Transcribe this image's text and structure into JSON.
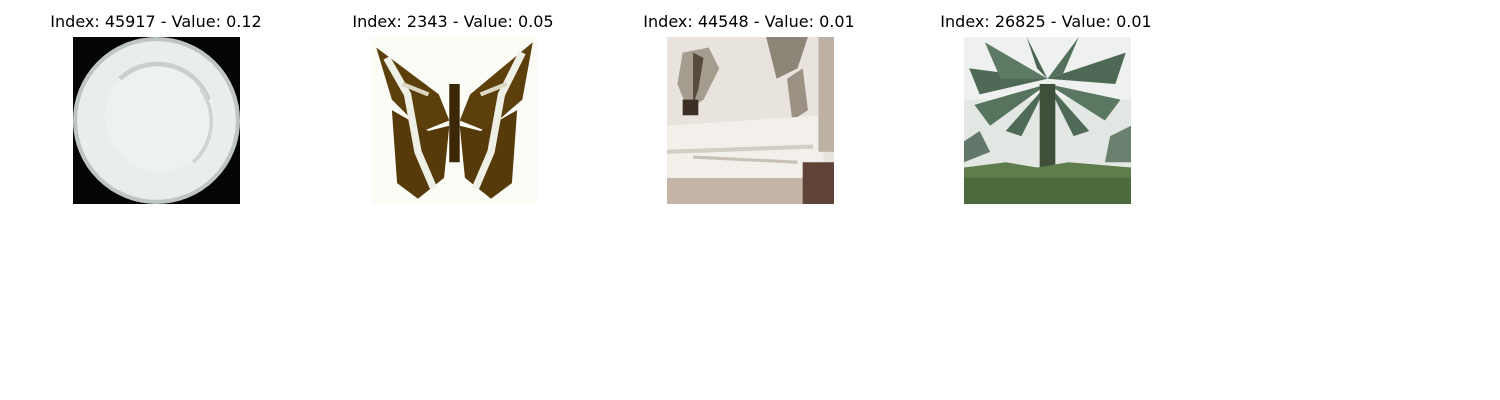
{
  "panels": [
    {
      "title": "Index: 45917 - Value: 0.12",
      "subject": "white plate on black background"
    },
    {
      "title": "Index: 2343 - Value: 0.05",
      "subject": "brown and white butterfly"
    },
    {
      "title": "Index: 44548 - Value: 0.01",
      "subject": "sepia interior scene with bed"
    },
    {
      "title": "Index: 26825 - Value: 0.01",
      "subject": "palm tree against sky"
    }
  ]
}
